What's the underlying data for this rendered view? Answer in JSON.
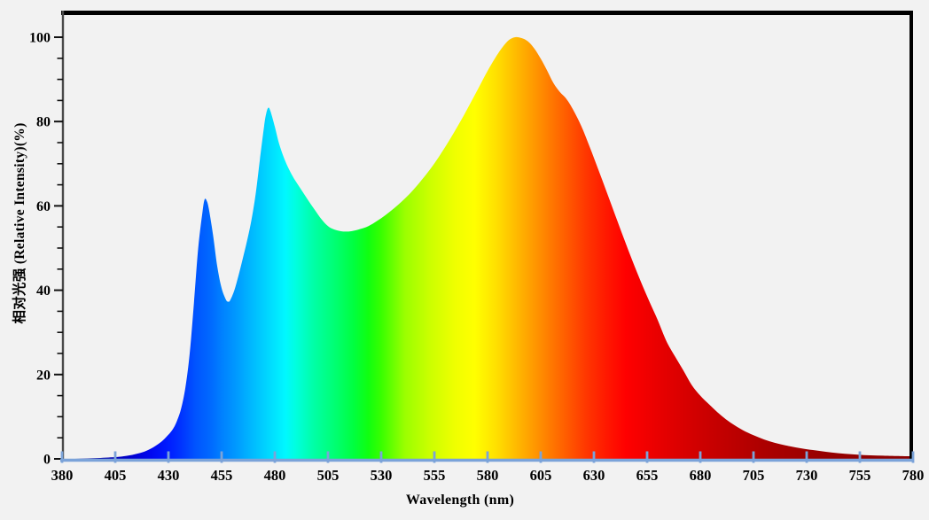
{
  "window": {
    "background": "#f2f2f2"
  },
  "axes": {
    "x": {
      "title": "Wavelength (nm)",
      "min": 380,
      "max": 780,
      "tick_step": 25,
      "ticks": [
        380,
        405,
        430,
        455,
        480,
        505,
        530,
        555,
        580,
        605,
        630,
        655,
        680,
        705,
        730,
        755,
        780
      ],
      "color": "#7ba3d9"
    },
    "y": {
      "title": "相对光强 (Relative Intensity)(%)",
      "min": 0,
      "max": 100,
      "tick_step": 20,
      "minor_tick_step": 5,
      "ticks": [
        0,
        20,
        40,
        60,
        80,
        100
      ],
      "color": "#4a4a4a",
      "tick_color": "#111111"
    }
  },
  "colors": {
    "background": "#f2f2f2",
    "frame": "#000000",
    "x_axis": "#7ba3d9",
    "y_axis": "#4a4a4a",
    "text": "#000000"
  },
  "chart_data": {
    "type": "area",
    "title": "",
    "xlabel": "Wavelength (nm)",
    "ylabel": "相对光强 (Relative Intensity)(%)",
    "xlim": [
      380,
      780
    ],
    "ylim": [
      0,
      105
    ],
    "grid": false,
    "legend": "none",
    "description": "LED spectral power distribution: blue peak 61.5% at 447nm, cyan peak 83% at 477nm, valley 54% near 512nm, main peak 100% at 593nm, long red tail to 780nm",
    "peaks": [
      {
        "wavelength": 447,
        "intensity": 61.5
      },
      {
        "wavelength": 477,
        "intensity": 83.3
      },
      {
        "wavelength": 593,
        "intensity": 100
      }
    ],
    "valleys": [
      {
        "wavelength": 458,
        "intensity": 37.3
      },
      {
        "wavelength": 513,
        "intensity": 54
      }
    ],
    "points": [
      [
        380,
        0
      ],
      [
        386,
        0
      ],
      [
        392,
        0.1
      ],
      [
        398,
        0.2
      ],
      [
        403,
        0.35
      ],
      [
        408,
        0.55
      ],
      [
        413,
        0.95
      ],
      [
        418,
        1.6
      ],
      [
        422,
        2.5
      ],
      [
        426,
        3.8
      ],
      [
        429,
        5.2
      ],
      [
        432,
        7
      ],
      [
        434,
        9
      ],
      [
        436,
        12
      ],
      [
        438,
        17
      ],
      [
        440,
        25
      ],
      [
        442,
        37
      ],
      [
        444,
        50
      ],
      [
        446,
        58.5
      ],
      [
        447,
        61.5
      ],
      [
        448,
        61.2
      ],
      [
        449,
        59.3
      ],
      [
        451,
        53
      ],
      [
        453,
        45.5
      ],
      [
        455,
        40.5
      ],
      [
        457,
        37.8
      ],
      [
        458,
        37.3
      ],
      [
        459,
        37.6
      ],
      [
        461,
        40
      ],
      [
        463,
        43.6
      ],
      [
        465,
        47.6
      ],
      [
        467,
        51.8
      ],
      [
        469,
        56.6
      ],
      [
        471,
        62.8
      ],
      [
        473,
        71
      ],
      [
        475,
        79
      ],
      [
        476,
        82
      ],
      [
        477,
        83.3
      ],
      [
        478,
        82.4
      ],
      [
        480,
        78.8
      ],
      [
        482,
        74.8
      ],
      [
        484,
        71.8
      ],
      [
        486,
        69.4
      ],
      [
        488,
        67.4
      ],
      [
        490,
        65.7
      ],
      [
        493,
        63.4
      ],
      [
        496,
        61.1
      ],
      [
        499,
        58.9
      ],
      [
        502,
        56.8
      ],
      [
        505,
        55.2
      ],
      [
        508,
        54.4
      ],
      [
        511,
        54
      ],
      [
        514,
        53.9
      ],
      [
        517,
        54.1
      ],
      [
        520,
        54.5
      ],
      [
        524,
        55.2
      ],
      [
        528,
        56.4
      ],
      [
        532,
        57.8
      ],
      [
        536,
        59.4
      ],
      [
        540,
        61.2
      ],
      [
        544,
        63.2
      ],
      [
        548,
        65.5
      ],
      [
        552,
        68
      ],
      [
        556,
        70.8
      ],
      [
        560,
        73.9
      ],
      [
        564,
        77.2
      ],
      [
        568,
        80.7
      ],
      [
        572,
        84.4
      ],
      [
        576,
        88.2
      ],
      [
        580,
        92
      ],
      [
        584,
        95.4
      ],
      [
        587,
        97.6
      ],
      [
        590,
        99.3
      ],
      [
        593,
        100
      ],
      [
        596,
        99.8
      ],
      [
        599,
        99
      ],
      [
        602,
        97.3
      ],
      [
        605,
        94.9
      ],
      [
        608,
        92.1
      ],
      [
        611,
        89.1
      ],
      [
        614,
        87
      ],
      [
        617,
        85.4
      ],
      [
        620,
        83
      ],
      [
        624,
        79
      ],
      [
        628,
        74
      ],
      [
        632,
        68.7
      ],
      [
        636,
        63.3
      ],
      [
        640,
        57.8
      ],
      [
        644,
        52.4
      ],
      [
        648,
        47.1
      ],
      [
        652,
        42.1
      ],
      [
        656,
        37.4
      ],
      [
        660,
        32.9
      ],
      [
        664,
        28
      ],
      [
        668,
        24.4
      ],
      [
        672,
        21
      ],
      [
        676,
        17.5
      ],
      [
        680,
        15
      ],
      [
        684,
        13
      ],
      [
        688,
        11.1
      ],
      [
        692,
        9.4
      ],
      [
        696,
        8
      ],
      [
        700,
        6.8
      ],
      [
        705,
        5.6
      ],
      [
        710,
        4.6
      ],
      [
        715,
        3.8
      ],
      [
        720,
        3.2
      ],
      [
        725,
        2.7
      ],
      [
        730,
        2.3
      ],
      [
        736,
        1.9
      ],
      [
        742,
        1.5
      ],
      [
        748,
        1.2
      ],
      [
        754,
        1.0
      ],
      [
        760,
        0.85
      ],
      [
        766,
        0.75
      ],
      [
        772,
        0.68
      ],
      [
        780,
        0.6
      ]
    ],
    "gradient_stops": [
      [
        380,
        "#000082"
      ],
      [
        400,
        "#0000a8"
      ],
      [
        412,
        "#0000cd"
      ],
      [
        422,
        "#0008f0"
      ],
      [
        430,
        "#001cff"
      ],
      [
        437,
        "#0038ff"
      ],
      [
        443,
        "#0055ff"
      ],
      [
        450,
        "#006aff"
      ],
      [
        455,
        "#0080ff"
      ],
      [
        462,
        "#009aff"
      ],
      [
        468,
        "#00b4ff"
      ],
      [
        474,
        "#00ccff"
      ],
      [
        480,
        "#00e4ff"
      ],
      [
        485,
        "#00f8ff"
      ],
      [
        490,
        "#00ffde"
      ],
      [
        498,
        "#00ffa8"
      ],
      [
        509,
        "#00ff6e"
      ],
      [
        517,
        "#00ff40"
      ],
      [
        524,
        "#10ff10"
      ],
      [
        530,
        "#38ff00"
      ],
      [
        541,
        "#9aff00"
      ],
      [
        553,
        "#ccff00"
      ],
      [
        565,
        "#f0ff00"
      ],
      [
        574,
        "#ffff00"
      ],
      [
        584,
        "#ffe000"
      ],
      [
        595,
        "#ffb400"
      ],
      [
        605,
        "#ff8c00"
      ],
      [
        616,
        "#ff6000"
      ],
      [
        626,
        "#ff3800"
      ],
      [
        636,
        "#ff1800"
      ],
      [
        645,
        "#ff0000"
      ],
      [
        662,
        "#e60000"
      ],
      [
        685,
        "#c80000"
      ],
      [
        710,
        "#ac0000"
      ],
      [
        740,
        "#960000"
      ],
      [
        780,
        "#8b0000"
      ]
    ]
  }
}
